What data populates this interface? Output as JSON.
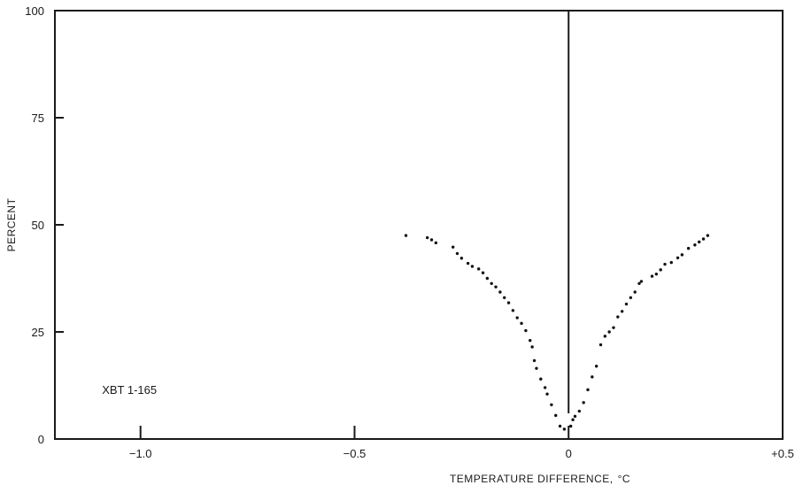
{
  "chart_data": {
    "type": "scatter",
    "title": "",
    "xlabel": "TEMPERATURE DIFFERENCE,",
    "xlabel_unit": "°C",
    "ylabel": "PERCENT",
    "xlim": [
      -1.2,
      0.5
    ],
    "ylim": [
      0,
      100
    ],
    "x_ticks": [
      -1.0,
      -0.5,
      0,
      0.5
    ],
    "x_tick_labels": [
      "−1.0",
      "−0.5",
      "0",
      "+0.5"
    ],
    "y_ticks": [
      0,
      25,
      50,
      75,
      100
    ],
    "y_tick_labels": [
      "0",
      "25",
      "50",
      "75",
      "100"
    ],
    "grid": false,
    "vertical_reference_line": {
      "x": 0,
      "y_from": 6,
      "y_to": 100
    },
    "annotations": [
      {
        "text": "XBT 1-165",
        "x": -1.09,
        "y": 10.5
      }
    ],
    "series": [
      {
        "points": [
          [
            -0.38,
            47.5
          ],
          [
            -0.33,
            47.0
          ],
          [
            -0.32,
            46.5
          ],
          [
            -0.31,
            45.8
          ],
          [
            -0.27,
            44.8
          ],
          [
            -0.26,
            43.3
          ],
          [
            -0.25,
            42.2
          ],
          [
            -0.235,
            41.0
          ],
          [
            -0.225,
            40.3
          ],
          [
            -0.21,
            39.7
          ],
          [
            -0.2,
            38.8
          ],
          [
            -0.19,
            37.5
          ],
          [
            -0.18,
            36.3
          ],
          [
            -0.17,
            35.5
          ],
          [
            -0.16,
            34.3
          ],
          [
            -0.15,
            33.0
          ],
          [
            -0.14,
            31.8
          ],
          [
            -0.13,
            30.0
          ],
          [
            -0.12,
            28.3
          ],
          [
            -0.11,
            27.0
          ],
          [
            -0.1,
            25.3
          ],
          [
            -0.09,
            23.0
          ],
          [
            -0.085,
            21.5
          ],
          [
            -0.08,
            18.3
          ],
          [
            -0.075,
            16.5
          ],
          [
            -0.065,
            14.0
          ],
          [
            -0.055,
            12.0
          ],
          [
            -0.05,
            10.5
          ],
          [
            -0.04,
            8.0
          ],
          [
            -0.03,
            5.5
          ],
          [
            -0.02,
            3.0
          ],
          [
            -0.01,
            2.3
          ],
          [
            0.005,
            3.0
          ],
          [
            0.01,
            4.5
          ],
          [
            0.015,
            5.3
          ],
          [
            0.025,
            6.5
          ],
          [
            0.035,
            8.5
          ],
          [
            0.045,
            11.5
          ],
          [
            0.055,
            14.5
          ],
          [
            0.065,
            17.0
          ],
          [
            0.075,
            22.0
          ],
          [
            0.085,
            24.0
          ],
          [
            0.095,
            25.0
          ],
          [
            0.105,
            26.0
          ],
          [
            0.115,
            28.5
          ],
          [
            0.125,
            29.8
          ],
          [
            0.135,
            31.5
          ],
          [
            0.145,
            33.0
          ],
          [
            0.155,
            34.3
          ],
          [
            0.165,
            36.3
          ],
          [
            0.17,
            36.8
          ],
          [
            0.195,
            38.0
          ],
          [
            0.205,
            38.5
          ],
          [
            0.215,
            39.5
          ],
          [
            0.225,
            40.8
          ],
          [
            0.24,
            41.2
          ],
          [
            0.255,
            42.3
          ],
          [
            0.265,
            43.0
          ],
          [
            0.28,
            44.5
          ],
          [
            0.295,
            45.3
          ],
          [
            0.305,
            46.0
          ],
          [
            0.315,
            46.7
          ],
          [
            0.325,
            47.5
          ]
        ]
      }
    ]
  }
}
